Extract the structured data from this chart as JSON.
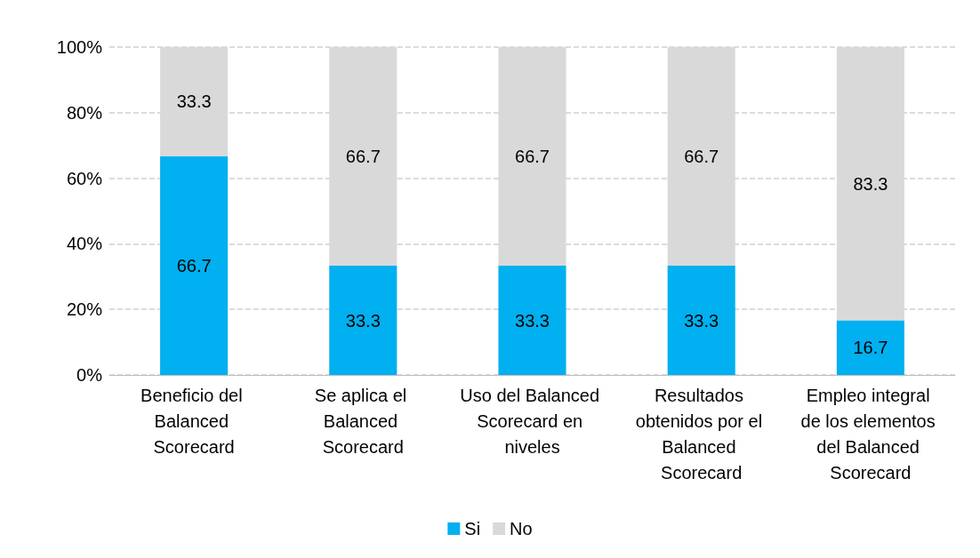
{
  "chart_data": {
    "type": "bar",
    "stacked": true,
    "categories": [
      "Beneficio del Balanced Scorecard",
      "Se aplica el Balanced Scorecard",
      "Uso del Balanced Scorecard en niveles",
      "Resultados obtenidos por el Balanced Scorecard",
      "Empleo integral de los elementos del Balanced Scorecard"
    ],
    "series": [
      {
        "name": "Si",
        "color": "#00b0f0",
        "values": [
          66.7,
          33.3,
          33.3,
          33.3,
          16.7
        ]
      },
      {
        "name": "No",
        "color": "#d9d9d9",
        "values": [
          33.3,
          66.7,
          66.7,
          66.7,
          83.3
        ]
      }
    ],
    "ylim": [
      0,
      100
    ],
    "yticks": [
      {
        "value": 0,
        "label": "0%"
      },
      {
        "value": 20,
        "label": "20%"
      },
      {
        "value": 40,
        "label": "40%"
      },
      {
        "value": 60,
        "label": "60%"
      },
      {
        "value": 80,
        "label": "80%"
      },
      {
        "value": 100,
        "label": "100%"
      }
    ],
    "data_labels": true,
    "grid": "y",
    "legend": "bottom"
  }
}
